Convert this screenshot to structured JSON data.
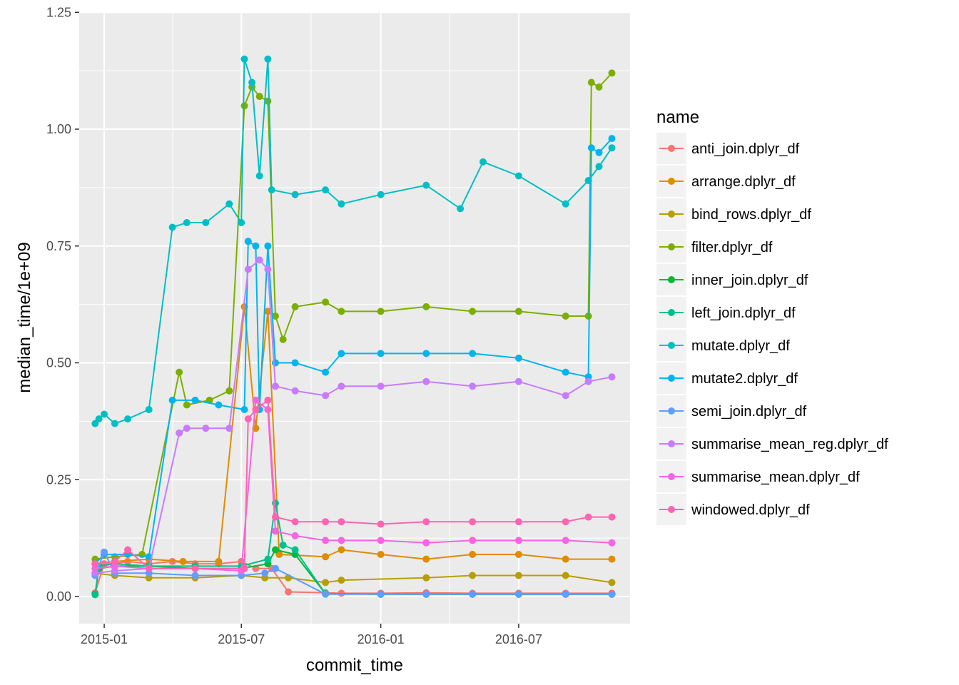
{
  "chart_data": {
    "type": "line",
    "xlabel": "commit_time",
    "ylabel": "median_time/1e+09",
    "x_ticks": [
      "2015-01",
      "2015-07",
      "2016-01",
      "2016-07"
    ],
    "y_ticks": [
      "0.00",
      "0.25",
      "0.50",
      "0.75",
      "1.00",
      "1.25"
    ],
    "xlim": [
      "2014-11-29",
      "2016-11-25"
    ],
    "ylim": [
      -0.055,
      1.25
    ],
    "grid": true,
    "points_shown": true,
    "legend": {
      "title": "name",
      "position": "right"
    },
    "series": [
      {
        "name": "anti_join.dplyr_df",
        "color": "#F8766D",
        "points": [
          [
            "2014-12-20",
            0.008
          ],
          [
            "2015-01-01",
            0.07
          ],
          [
            "2015-01-15",
            0.07
          ],
          [
            "2015-02-01",
            0.075
          ],
          [
            "2015-03-01",
            0.07
          ],
          [
            "2015-04-01",
            0.075
          ],
          [
            "2015-05-01",
            0.07
          ],
          [
            "2015-06-01",
            0.07
          ],
          [
            "2015-07-01",
            0.075
          ],
          [
            "2015-07-20",
            0.06
          ],
          [
            "2015-08-10",
            0.06
          ],
          [
            "2015-09-01",
            0.01
          ],
          [
            "2015-10-20",
            0.008
          ],
          [
            "2015-11-10",
            0.007
          ],
          [
            "2016-01-01",
            0.007
          ],
          [
            "2016-03-01",
            0.008
          ],
          [
            "2016-05-01",
            0.007
          ],
          [
            "2016-07-01",
            0.007
          ],
          [
            "2016-09-01",
            0.007
          ],
          [
            "2016-11-01",
            0.007
          ]
        ]
      },
      {
        "name": "arrange.dplyr_df",
        "color": "#DE8C00",
        "points": [
          [
            "2014-12-20",
            0.07
          ],
          [
            "2015-01-15",
            0.075
          ],
          [
            "2015-03-01",
            0.08
          ],
          [
            "2015-04-15",
            0.075
          ],
          [
            "2015-06-01",
            0.075
          ],
          [
            "2015-07-05",
            0.62
          ],
          [
            "2015-07-20",
            0.36
          ],
          [
            "2015-08-05",
            0.61
          ],
          [
            "2015-08-20",
            0.09
          ],
          [
            "2015-10-20",
            0.085
          ],
          [
            "2015-11-10",
            0.1
          ],
          [
            "2016-01-01",
            0.09
          ],
          [
            "2016-03-01",
            0.08
          ],
          [
            "2016-05-01",
            0.09
          ],
          [
            "2016-07-01",
            0.09
          ],
          [
            "2016-09-01",
            0.08
          ],
          [
            "2016-11-01",
            0.08
          ]
        ]
      },
      {
        "name": "bind_rows.dplyr_df",
        "color": "#B79F00",
        "points": [
          [
            "2014-12-20",
            0.05
          ],
          [
            "2015-01-15",
            0.045
          ],
          [
            "2015-03-01",
            0.04
          ],
          [
            "2015-05-01",
            0.04
          ],
          [
            "2015-07-01",
            0.045
          ],
          [
            "2015-08-01",
            0.04
          ],
          [
            "2015-09-01",
            0.04
          ],
          [
            "2015-10-20",
            0.03
          ],
          [
            "2015-11-10",
            0.035
          ],
          [
            "2016-03-01",
            0.04
          ],
          [
            "2016-05-01",
            0.045
          ],
          [
            "2016-07-01",
            0.045
          ],
          [
            "2016-09-01",
            0.045
          ],
          [
            "2016-11-01",
            0.03
          ]
        ]
      },
      {
        "name": "filter.dplyr_df",
        "color": "#7CAE00",
        "points": [
          [
            "2014-12-20",
            0.08
          ],
          [
            "2015-01-15",
            0.085
          ],
          [
            "2015-02-20",
            0.09
          ],
          [
            "2015-04-10",
            0.48
          ],
          [
            "2015-04-20",
            0.41
          ],
          [
            "2015-05-20",
            0.42
          ],
          [
            "2015-06-15",
            0.44
          ],
          [
            "2015-07-05",
            1.05
          ],
          [
            "2015-07-15",
            1.09
          ],
          [
            "2015-07-25",
            1.07
          ],
          [
            "2015-08-05",
            1.06
          ],
          [
            "2015-08-15",
            0.6
          ],
          [
            "2015-08-25",
            0.55
          ],
          [
            "2015-09-10",
            0.62
          ],
          [
            "2015-10-20",
            0.63
          ],
          [
            "2015-11-10",
            0.61
          ],
          [
            "2016-01-01",
            0.61
          ],
          [
            "2016-03-01",
            0.62
          ],
          [
            "2016-05-01",
            0.61
          ],
          [
            "2016-07-01",
            0.61
          ],
          [
            "2016-09-01",
            0.6
          ],
          [
            "2016-10-01",
            0.6
          ],
          [
            "2016-10-05",
            1.1
          ],
          [
            "2016-10-15",
            1.09
          ],
          [
            "2016-11-01",
            1.12
          ]
        ]
      },
      {
        "name": "inner_join.dplyr_df",
        "color": "#00BA38",
        "points": [
          [
            "2014-12-20",
            0.005
          ],
          [
            "2014-12-25",
            0.06
          ],
          [
            "2015-01-15",
            0.065
          ],
          [
            "2015-03-01",
            0.065
          ],
          [
            "2015-05-01",
            0.06
          ],
          [
            "2015-07-01",
            0.06
          ],
          [
            "2015-08-05",
            0.07
          ],
          [
            "2015-08-15",
            0.1
          ],
          [
            "2015-09-10",
            0.09
          ],
          [
            "2015-10-20",
            0.006
          ],
          [
            "2016-01-01",
            0.005
          ],
          [
            "2016-03-01",
            0.005
          ],
          [
            "2016-05-01",
            0.005
          ],
          [
            "2016-07-01",
            0.005
          ],
          [
            "2016-09-01",
            0.005
          ],
          [
            "2016-11-01",
            0.005
          ]
        ]
      },
      {
        "name": "left_join.dplyr_df",
        "color": "#00C08B",
        "points": [
          [
            "2014-12-20",
            0.004
          ],
          [
            "2014-12-25",
            0.065
          ],
          [
            "2015-01-15",
            0.07
          ],
          [
            "2015-03-01",
            0.065
          ],
          [
            "2015-05-01",
            0.065
          ],
          [
            "2015-07-01",
            0.065
          ],
          [
            "2015-08-05",
            0.08
          ],
          [
            "2015-08-15",
            0.2
          ],
          [
            "2015-08-25",
            0.11
          ],
          [
            "2015-09-10",
            0.1
          ],
          [
            "2015-10-20",
            0.006
          ],
          [
            "2016-01-01",
            0.005
          ],
          [
            "2016-03-01",
            0.005
          ],
          [
            "2016-05-01",
            0.005
          ],
          [
            "2016-07-01",
            0.005
          ],
          [
            "2016-09-01",
            0.005
          ],
          [
            "2016-11-01",
            0.005
          ]
        ]
      },
      {
        "name": "mutate.dplyr_df",
        "color": "#00BFC4",
        "points": [
          [
            "2014-12-20",
            0.37
          ],
          [
            "2014-12-25",
            0.38
          ],
          [
            "2015-01-01",
            0.39
          ],
          [
            "2015-01-15",
            0.37
          ],
          [
            "2015-02-01",
            0.38
          ],
          [
            "2015-03-01",
            0.4
          ],
          [
            "2015-04-01",
            0.79
          ],
          [
            "2015-04-20",
            0.8
          ],
          [
            "2015-05-15",
            0.8
          ],
          [
            "2015-06-15",
            0.84
          ],
          [
            "2015-07-01",
            0.8
          ],
          [
            "2015-07-05",
            1.15
          ],
          [
            "2015-07-15",
            1.1
          ],
          [
            "2015-07-25",
            0.9
          ],
          [
            "2015-08-05",
            1.15
          ],
          [
            "2015-08-10",
            0.87
          ],
          [
            "2015-09-10",
            0.86
          ],
          [
            "2015-10-20",
            0.87
          ],
          [
            "2015-11-10",
            0.84
          ],
          [
            "2016-01-01",
            0.86
          ],
          [
            "2016-03-01",
            0.88
          ],
          [
            "2016-04-15",
            0.83
          ],
          [
            "2016-05-15",
            0.93
          ],
          [
            "2016-07-01",
            0.9
          ],
          [
            "2016-09-01",
            0.84
          ],
          [
            "2016-10-01",
            0.89
          ],
          [
            "2016-10-15",
            0.92
          ],
          [
            "2016-11-01",
            0.96
          ]
        ]
      },
      {
        "name": "mutate2.dplyr_df",
        "color": "#00B4F0",
        "points": [
          [
            "2014-12-20",
            0.07
          ],
          [
            "2015-01-01",
            0.09
          ],
          [
            "2015-02-01",
            0.09
          ],
          [
            "2015-03-01",
            0.085
          ],
          [
            "2015-04-01",
            0.42
          ],
          [
            "2015-05-01",
            0.42
          ],
          [
            "2015-06-01",
            0.41
          ],
          [
            "2015-07-05",
            0.4
          ],
          [
            "2015-07-10",
            0.76
          ],
          [
            "2015-07-20",
            0.75
          ],
          [
            "2015-07-25",
            0.4
          ],
          [
            "2015-08-05",
            0.75
          ],
          [
            "2015-08-15",
            0.5
          ],
          [
            "2015-09-10",
            0.5
          ],
          [
            "2015-10-20",
            0.48
          ],
          [
            "2015-11-10",
            0.52
          ],
          [
            "2016-01-01",
            0.52
          ],
          [
            "2016-03-01",
            0.52
          ],
          [
            "2016-05-01",
            0.52
          ],
          [
            "2016-07-01",
            0.51
          ],
          [
            "2016-09-01",
            0.48
          ],
          [
            "2016-10-01",
            0.47
          ],
          [
            "2016-10-05",
            0.96
          ],
          [
            "2016-10-15",
            0.95
          ],
          [
            "2016-11-01",
            0.98
          ]
        ]
      },
      {
        "name": "semi_join.dplyr_df",
        "color": "#619CFF",
        "points": [
          [
            "2014-12-20",
            0.045
          ],
          [
            "2015-01-01",
            0.095
          ],
          [
            "2015-01-15",
            0.05
          ],
          [
            "2015-03-01",
            0.05
          ],
          [
            "2015-05-01",
            0.045
          ],
          [
            "2015-07-01",
            0.045
          ],
          [
            "2015-08-01",
            0.05
          ],
          [
            "2015-08-15",
            0.06
          ],
          [
            "2015-10-20",
            0.005
          ],
          [
            "2016-01-01",
            0.005
          ],
          [
            "2016-03-01",
            0.005
          ],
          [
            "2016-05-01",
            0.005
          ],
          [
            "2016-07-01",
            0.005
          ],
          [
            "2016-09-01",
            0.005
          ],
          [
            "2016-11-01",
            0.005
          ]
        ]
      },
      {
        "name": "summarise_mean_reg.dplyr_df",
        "color": "#C77CFF",
        "points": [
          [
            "2014-12-20",
            0.05
          ],
          [
            "2015-01-15",
            0.055
          ],
          [
            "2015-03-01",
            0.06
          ],
          [
            "2015-04-10",
            0.35
          ],
          [
            "2015-04-20",
            0.36
          ],
          [
            "2015-05-15",
            0.36
          ],
          [
            "2015-06-15",
            0.36
          ],
          [
            "2015-07-10",
            0.7
          ],
          [
            "2015-07-25",
            0.72
          ],
          [
            "2015-08-05",
            0.7
          ],
          [
            "2015-08-15",
            0.45
          ],
          [
            "2015-09-10",
            0.44
          ],
          [
            "2015-10-20",
            0.43
          ],
          [
            "2015-11-10",
            0.45
          ],
          [
            "2016-01-01",
            0.45
          ],
          [
            "2016-03-01",
            0.46
          ],
          [
            "2016-05-01",
            0.45
          ],
          [
            "2016-07-01",
            0.46
          ],
          [
            "2016-09-01",
            0.43
          ],
          [
            "2016-10-01",
            0.46
          ],
          [
            "2016-11-01",
            0.47
          ]
        ]
      },
      {
        "name": "summarise_mean.dplyr_df",
        "color": "#F564E3",
        "points": [
          [
            "2014-12-20",
            0.06
          ],
          [
            "2015-01-15",
            0.065
          ],
          [
            "2015-03-01",
            0.06
          ],
          [
            "2015-05-01",
            0.06
          ],
          [
            "2015-07-01",
            0.055
          ],
          [
            "2015-07-20",
            0.42
          ],
          [
            "2015-08-05",
            0.4
          ],
          [
            "2015-08-15",
            0.14
          ],
          [
            "2015-09-10",
            0.13
          ],
          [
            "2015-10-20",
            0.12
          ],
          [
            "2015-11-10",
            0.12
          ],
          [
            "2016-01-01",
            0.12
          ],
          [
            "2016-03-01",
            0.115
          ],
          [
            "2016-05-01",
            0.12
          ],
          [
            "2016-07-01",
            0.12
          ],
          [
            "2016-09-01",
            0.12
          ],
          [
            "2016-11-01",
            0.115
          ]
        ]
      },
      {
        "name": "windowed.dplyr_df",
        "color": "#FF64B0",
        "points": [
          [
            "2014-12-20",
            0.07
          ],
          [
            "2015-01-15",
            0.075
          ],
          [
            "2015-02-01",
            0.1
          ],
          [
            "2015-03-01",
            0.06
          ],
          [
            "2015-05-01",
            0.06
          ],
          [
            "2015-07-05",
            0.06
          ],
          [
            "2015-07-10",
            0.38
          ],
          [
            "2015-07-20",
            0.4
          ],
          [
            "2015-08-05",
            0.42
          ],
          [
            "2015-08-15",
            0.17
          ],
          [
            "2015-09-10",
            0.16
          ],
          [
            "2015-10-20",
            0.16
          ],
          [
            "2015-11-10",
            0.16
          ],
          [
            "2016-01-01",
            0.155
          ],
          [
            "2016-03-01",
            0.16
          ],
          [
            "2016-05-01",
            0.16
          ],
          [
            "2016-07-01",
            0.16
          ],
          [
            "2016-09-01",
            0.16
          ],
          [
            "2016-10-01",
            0.17
          ],
          [
            "2016-11-01",
            0.17
          ]
        ]
      }
    ]
  }
}
